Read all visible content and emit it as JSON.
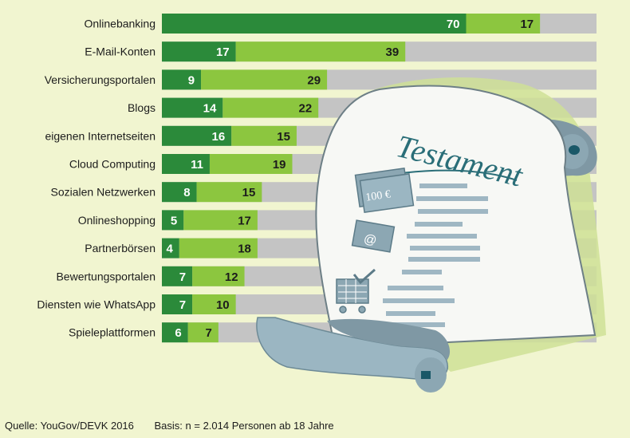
{
  "chart_data": {
    "type": "bar",
    "stacked": true,
    "orientation": "horizontal",
    "categories": [
      "Onlinebanking",
      "E-Mail-Konten",
      "Versicherungsportalen",
      "Blogs",
      "eigenen Internetseiten",
      "Cloud Computing",
      "Sozialen Netzwerken",
      "Onlineshopping",
      "Partnerbörsen",
      "Bewertungsportalen",
      "Diensten wie WhatsApp",
      "Spieleplattformen"
    ],
    "series": [
      {
        "values": [
          70,
          17,
          9,
          14,
          16,
          11,
          8,
          5,
          4,
          7,
          7,
          6
        ]
      },
      {
        "values": [
          17,
          39,
          29,
          22,
          15,
          19,
          15,
          17,
          18,
          12,
          10,
          7
        ]
      }
    ],
    "xlim": [
      0,
      100
    ],
    "grid": false,
    "colors": {
      "series1": "#2b8a3a",
      "series2": "#8cc63f",
      "remainder": "#c4c4c4",
      "background": "#f1f5d0"
    }
  },
  "illustration": {
    "heading": "Testament",
    "banknote": "100 €",
    "icons": [
      "banknote-icon",
      "email-envelope-icon",
      "shopping-cart-icon"
    ]
  },
  "footer": {
    "source": "Quelle: YouGov/DEVK 2016",
    "basis": "Basis: n = 2.014 Personen ab 18 Jahre"
  }
}
